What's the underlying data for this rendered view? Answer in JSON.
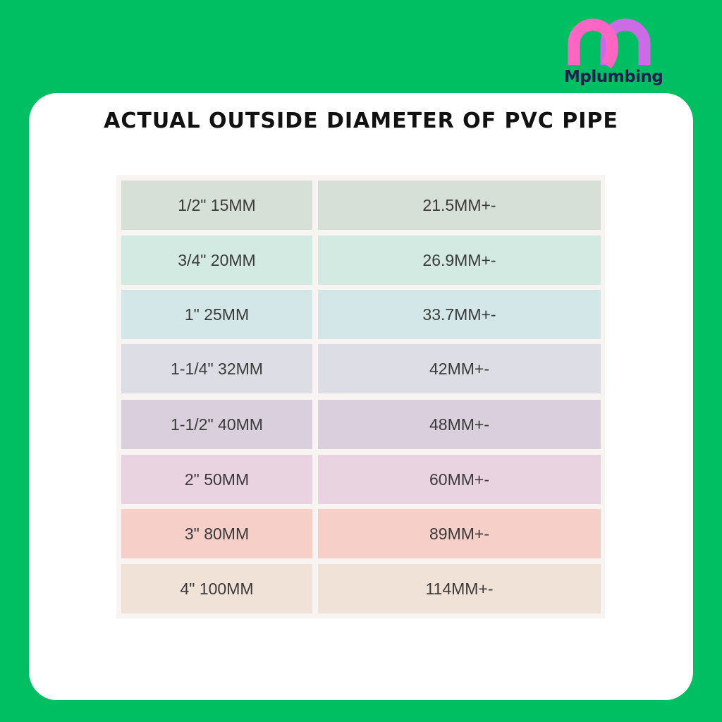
{
  "brand": {
    "name": "Mplumbing",
    "colors": {
      "pink": "#ff66c4",
      "purple": "#cb6ce6",
      "text": "#1c1f4f"
    }
  },
  "title": "ACTUAL OUTSIDE DIAMETER OF PVC PIPE",
  "table": {
    "rows": [
      {
        "size": "1/2\" 15MM",
        "od": "21.5MM+-",
        "color": "#d6e0d6"
      },
      {
        "size": "3/4\" 20MM",
        "od": "26.9MM+-",
        "color": "#d2eae1"
      },
      {
        "size": "1\" 25MM",
        "od": "33.7MM+-",
        "color": "#d3e7e9"
      },
      {
        "size": "1-1/4\" 32MM",
        "od": "42MM+-",
        "color": "#dddde6"
      },
      {
        "size": "1-1/2\" 40MM",
        "od": "48MM+-",
        "color": "#dacfdd"
      },
      {
        "size": "2\" 50MM",
        "od": "60MM+-",
        "color": "#ead3e1"
      },
      {
        "size": "3\" 80MM",
        "od": "89MM+-",
        "color": "#f6d0c8"
      },
      {
        "size": "4\" 100MM",
        "od": "114MM+-",
        "color": "#f1e2d8"
      }
    ]
  }
}
